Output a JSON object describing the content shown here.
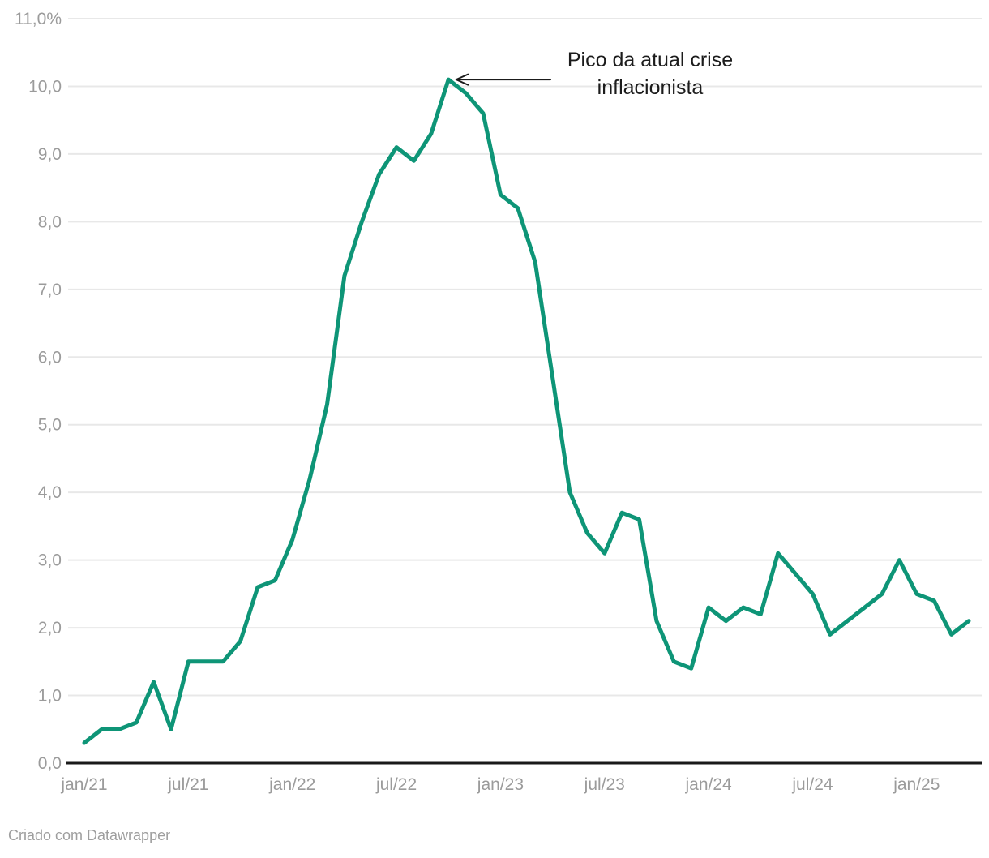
{
  "annotation": {
    "line1": "Pico da atual crise",
    "line2": "inflacionista"
  },
  "footer": {
    "credit": "Criado com Datawrapper"
  },
  "colors": {
    "line": "#0e9577",
    "grid": "#e8e8e8",
    "axis_line": "#1a1a1a",
    "tick_text": "#9b9b9b",
    "annotation_text": "#1c1c1c",
    "arrow": "#1a1a1a",
    "footer_text": "#9e9e9e"
  },
  "chart_data": {
    "type": "line",
    "title": "",
    "xlabel": "",
    "ylabel": "",
    "grid": true,
    "legend": "none",
    "ylim": [
      0,
      11
    ],
    "x": [
      "jan/21",
      "fev/21",
      "mar/21",
      "abr/21",
      "mai/21",
      "jun/21",
      "jul/21",
      "ago/21",
      "set/21",
      "out/21",
      "nov/21",
      "dez/21",
      "jan/22",
      "fev/22",
      "mar/22",
      "abr/22",
      "mai/22",
      "jun/22",
      "jul/22",
      "ago/22",
      "set/22",
      "out/22",
      "nov/22",
      "dez/22",
      "jan/23",
      "fev/23",
      "mar/23",
      "abr/23",
      "mai/23",
      "jun/23",
      "jul/23",
      "ago/23",
      "set/23",
      "out/23",
      "nov/23",
      "dez/23",
      "jan/24",
      "fev/24",
      "mar/24",
      "abr/24",
      "mai/24",
      "jun/24",
      "jul/24",
      "ago/24",
      "set/24",
      "out/24",
      "nov/24",
      "dez/24",
      "jan/25",
      "fev/25",
      "mar/25",
      "abr/25"
    ],
    "values": [
      0.3,
      0.5,
      0.5,
      0.6,
      1.2,
      0.5,
      1.5,
      1.5,
      1.5,
      1.8,
      2.6,
      2.7,
      3.3,
      4.2,
      5.3,
      7.2,
      8.0,
      8.7,
      9.1,
      8.9,
      9.3,
      10.1,
      9.9,
      9.6,
      8.4,
      8.2,
      7.4,
      5.7,
      4.0,
      3.4,
      3.1,
      3.7,
      3.6,
      2.1,
      1.5,
      1.4,
      2.3,
      2.1,
      2.3,
      2.2,
      3.1,
      2.8,
      2.5,
      1.9,
      2.1,
      2.3,
      2.5,
      3.0,
      2.5,
      2.4,
      1.9,
      2.1
    ],
    "y_ticks": [
      {
        "value": 0,
        "label": "0,0"
      },
      {
        "value": 1,
        "label": "1,0"
      },
      {
        "value": 2,
        "label": "2,0"
      },
      {
        "value": 3,
        "label": "3,0"
      },
      {
        "value": 4,
        "label": "4,0"
      },
      {
        "value": 5,
        "label": "5,0"
      },
      {
        "value": 6,
        "label": "6,0"
      },
      {
        "value": 7,
        "label": "7,0"
      },
      {
        "value": 8,
        "label": "8,0"
      },
      {
        "value": 9,
        "label": "9,0"
      },
      {
        "value": 10,
        "label": "10,0"
      },
      {
        "value": 11,
        "label": "11,0%"
      }
    ],
    "x_ticks": [
      {
        "index": 0,
        "label": "jan/21"
      },
      {
        "index": 6,
        "label": "jul/21"
      },
      {
        "index": 12,
        "label": "jan/22"
      },
      {
        "index": 18,
        "label": "jul/22"
      },
      {
        "index": 24,
        "label": "jan/23"
      },
      {
        "index": 30,
        "label": "jul/23"
      },
      {
        "index": 36,
        "label": "jan/24"
      },
      {
        "index": 42,
        "label": "jul/24"
      },
      {
        "index": 48,
        "label": "jan/25"
      }
    ],
    "annotation": {
      "text": "Pico da atual crise inflacionista",
      "points_to": {
        "x": "out/22",
        "value": 10.1
      }
    }
  }
}
